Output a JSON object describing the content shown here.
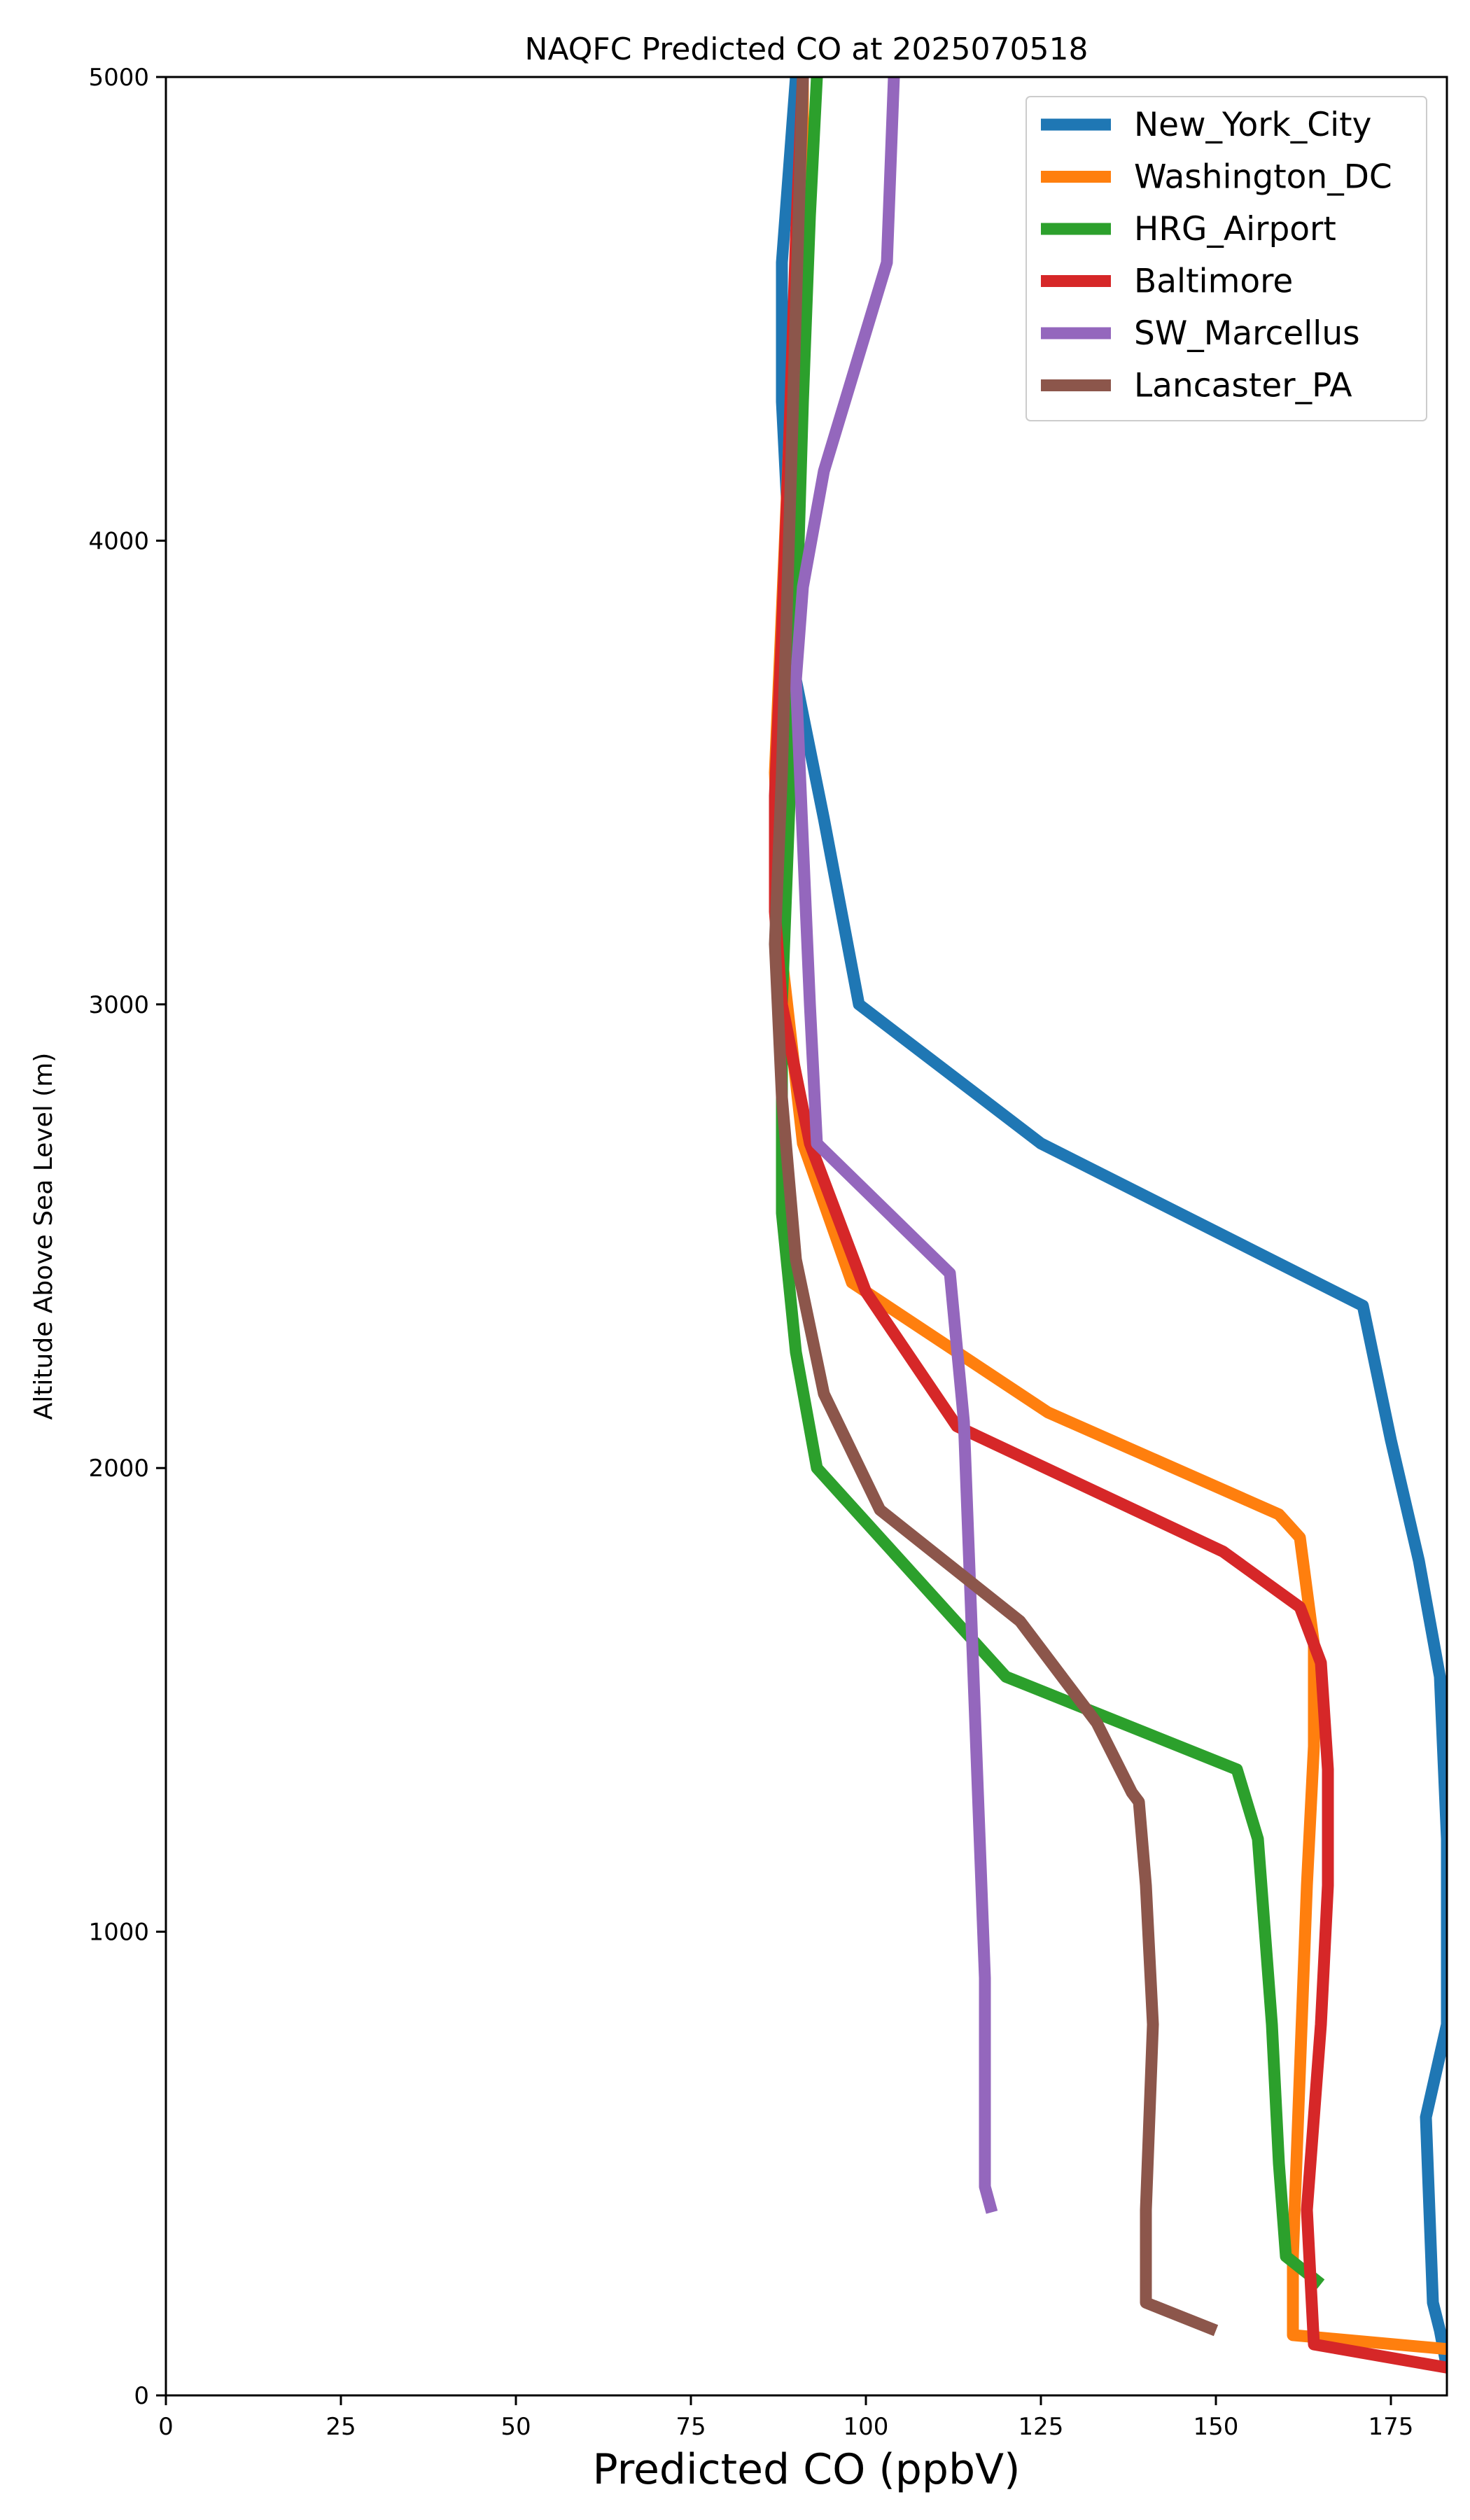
{
  "chart_data": {
    "type": "line",
    "title": "NAQFC Predicted CO at 2025070518",
    "xlabel": "Predicted CO (ppbV)",
    "ylabel": "Altitude Above Sea Level (m)",
    "xlim": [
      0,
      183
    ],
    "ylim": [
      0,
      5000
    ],
    "xticks": [
      0,
      25,
      50,
      75,
      100,
      125,
      150,
      175
    ],
    "yticks": [
      0,
      1000,
      2000,
      3000,
      4000,
      5000
    ],
    "grid": false,
    "legend": "top-right",
    "series": [
      {
        "name": "New_York_City",
        "color": "#1f77b4",
        "x": [
          183,
          182,
          181,
          180,
          183,
          183,
          183,
          182,
          179,
          175,
          171,
          125,
          99,
          94,
          90,
          89,
          88,
          88,
          89,
          90,
          91,
          91
        ],
        "y": [
          60,
          140,
          200,
          600,
          800,
          1000,
          1200,
          1550,
          1800,
          2060,
          2350,
          2700,
          3000,
          3400,
          3700,
          4000,
          4300,
          4600,
          4800,
          5000,
          5000,
          5000
        ]
      },
      {
        "name": "Washington_DC",
        "color": "#ff7f0e",
        "x": [
          183,
          161,
          161,
          162,
          163,
          164,
          164,
          162,
          159,
          126,
          98,
          91,
          88,
          87,
          88,
          89,
          90,
          91,
          91
        ],
        "y": [
          100,
          130,
          300,
          700,
          1100,
          1400,
          1620,
          1850,
          1900,
          2120,
          2400,
          2700,
          3100,
          3500,
          3850,
          4200,
          4550,
          4800,
          5000
        ]
      },
      {
        "name": "HRG_Airport",
        "color": "#2ca02c",
        "x": [
          165,
          160,
          159,
          158,
          156,
          153,
          120,
          93,
          90,
          88,
          88,
          88,
          89,
          90,
          91,
          92,
          93
        ],
        "y": [
          240,
          300,
          500,
          800,
          1200,
          1350,
          1550,
          2000,
          2250,
          2550,
          2800,
          3000,
          3400,
          3800,
          4300,
          4700,
          5000
        ]
      },
      {
        "name": "Baltimore",
        "color": "#d62728",
        "x": [
          183,
          164,
          163,
          164,
          165,
          166,
          166,
          165,
          162,
          151,
          113,
          100,
          92,
          88,
          87,
          87,
          88,
          89,
          90,
          91
        ],
        "y": [
          60,
          110,
          400,
          600,
          800,
          1100,
          1350,
          1580,
          1700,
          1820,
          2090,
          2380,
          2700,
          3000,
          3200,
          3450,
          3800,
          4200,
          4650,
          5000
        ]
      },
      {
        "name": "SW_Marcellus",
        "color": "#9467bd",
        "x": [
          118,
          117,
          117,
          116,
          115,
          114,
          112,
          93,
          92,
          91,
          90,
          91,
          94,
          103,
          104
        ],
        "y": [
          395,
          450,
          900,
          1300,
          1700,
          2100,
          2420,
          2700,
          3000,
          3350,
          3700,
          3900,
          4150,
          4600,
          5000
        ]
      },
      {
        "name": "Lancaster_PA",
        "color": "#8c564b",
        "x": [
          150,
          140,
          140,
          141,
          140,
          139,
          138,
          133,
          122,
          102,
          94,
          90,
          88,
          87,
          88,
          89,
          90,
          91
        ],
        "y": [
          140,
          200,
          400,
          800,
          1100,
          1280,
          1300,
          1450,
          1670,
          1910,
          2160,
          2450,
          2800,
          3130,
          3500,
          4000,
          4500,
          5000
        ]
      }
    ]
  }
}
